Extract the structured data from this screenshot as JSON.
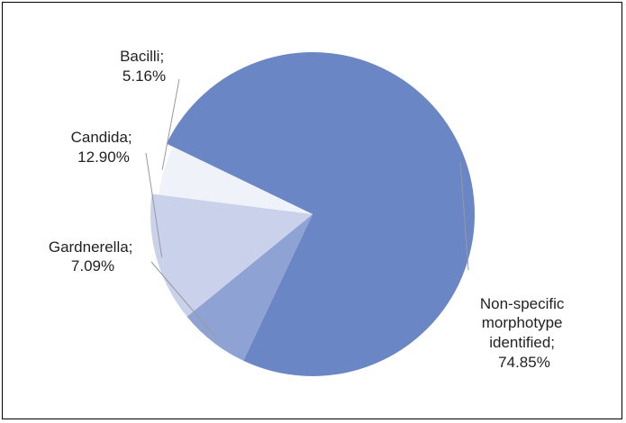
{
  "chart_data": {
    "type": "pie",
    "title": "",
    "slices": [
      {
        "label": "Non-specific morphotype identified;",
        "value_text": "74.85%",
        "value": 74.85,
        "color": "#6b86c4"
      },
      {
        "label": "Gardnerella;",
        "value_text": "7.09%",
        "value": 7.09,
        "color": "#8ea3d3"
      },
      {
        "label": "Candida;",
        "value_text": "12.90%",
        "value": 12.9,
        "color": "#c9d2ea"
      },
      {
        "label": "Bacilli;",
        "value_text": "5.16%",
        "value": 5.16,
        "color": "#eff2f9"
      }
    ],
    "label_lines": [
      [
        "Non-specific",
        "morphotype",
        "identified;",
        "74.85%"
      ],
      [
        "Gardnerella;",
        "7.09%"
      ],
      [
        "Candida;",
        "12.90%"
      ],
      [
        "Bacilli;",
        "5.16%"
      ]
    ],
    "legend": "none"
  }
}
